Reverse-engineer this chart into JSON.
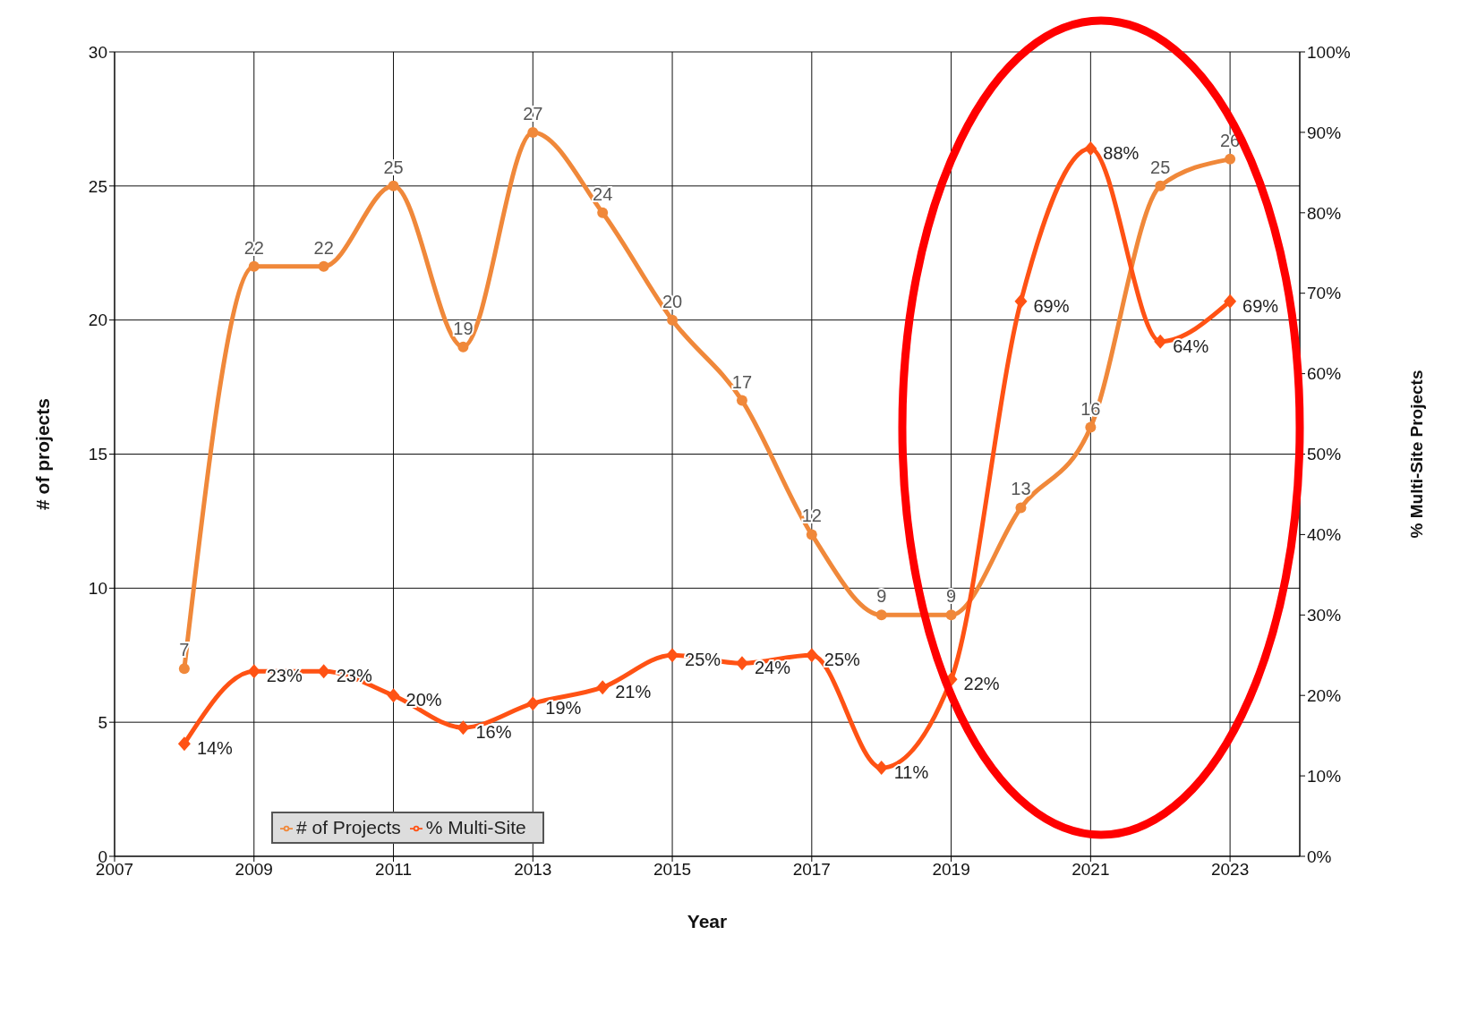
{
  "chart_data": {
    "type": "line",
    "xlabel": "Year",
    "ylabel": "# of projects",
    "y2label": "% Multi-Site Projects",
    "x": [
      2008,
      2009,
      2010,
      2011,
      2012,
      2013,
      2014,
      2015,
      2016,
      2017,
      2018,
      2019,
      2020,
      2021,
      2022,
      2023
    ],
    "series": [
      {
        "name": "# of Projects",
        "color": "#f0883a",
        "marker": "circle",
        "values": [
          7,
          22,
          22,
          25,
          19,
          27,
          24,
          20,
          17,
          12,
          9,
          9,
          13,
          16,
          25,
          26
        ],
        "value_labels": [
          "7",
          "22",
          "22",
          "25",
          "19",
          "27",
          "24",
          "20",
          "17",
          "12",
          "9",
          "9",
          "13",
          "16",
          "25",
          "26"
        ]
      },
      {
        "name": "% Multi-Site",
        "color": "#ff5214",
        "marker": "diamond",
        "axis": "y2",
        "values": [
          14,
          23,
          23,
          20,
          16,
          19,
          21,
          25,
          24,
          25,
          11,
          22,
          69,
          88,
          64,
          69
        ],
        "value_labels": [
          "14%",
          "23%",
          "23%",
          "20%",
          "16%",
          "19%",
          "21%",
          "25%",
          "24%",
          "25%",
          "11%",
          "22%",
          "69%",
          "88%",
          "64%",
          "69%"
        ]
      }
    ],
    "xlim": [
      2007,
      2024
    ],
    "xticks": [
      2007,
      2009,
      2011,
      2013,
      2015,
      2017,
      2019,
      2021,
      2023
    ],
    "ylim": [
      0,
      30
    ],
    "yticks": [
      0,
      5,
      10,
      15,
      20,
      25,
      30
    ],
    "y2lim": [
      0,
      100
    ],
    "y2ticks": [
      {
        "value": 0,
        "label": "0%"
      },
      {
        "value": 10,
        "label": "10%"
      },
      {
        "value": 20,
        "label": "20%"
      },
      {
        "value": 30,
        "label": "30%"
      },
      {
        "value": 40,
        "label": "40%"
      },
      {
        "value": 50,
        "label": "50%"
      },
      {
        "value": 60,
        "label": "60%"
      },
      {
        "value": 70,
        "label": "70%"
      },
      {
        "value": 80,
        "label": "80%"
      },
      {
        "value": 90,
        "label": "90%"
      },
      {
        "value": 100,
        "label": "100%"
      }
    ],
    "grid": true,
    "legend": "bottom left"
  }
}
